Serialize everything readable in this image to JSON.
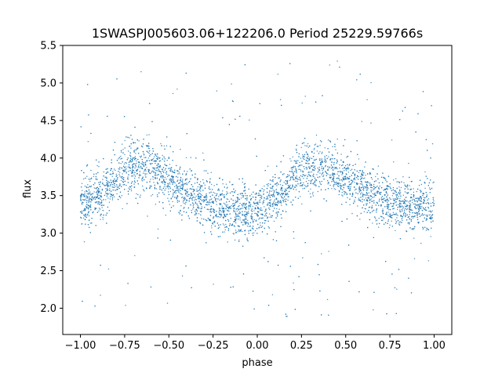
{
  "chart_data": {
    "type": "scatter",
    "title": "1SWASPJ005603.06+122206.0 Period 25229.59766s",
    "xlabel": "phase",
    "ylabel": "flux",
    "xlim": [
      -1.1,
      1.1
    ],
    "ylim": [
      1.65,
      5.5
    ],
    "xticks": [
      -1.0,
      -0.75,
      -0.5,
      -0.25,
      0.0,
      0.25,
      0.5,
      0.75,
      1.0
    ],
    "xtick_labels": [
      "−1.00",
      "−0.75",
      "−0.50",
      "−0.25",
      "0.00",
      "0.25",
      "0.50",
      "0.75",
      "1.00"
    ],
    "yticks": [
      2.0,
      2.5,
      3.0,
      3.5,
      4.0,
      4.5,
      5.0,
      5.5
    ],
    "ytick_labels": [
      "2.0",
      "2.5",
      "3.0",
      "3.5",
      "4.0",
      "4.5",
      "5.0",
      "5.5"
    ],
    "grid": false,
    "point_color": "#1f77b4",
    "phase_range": [
      -1.0,
      1.0
    ],
    "series": [
      {
        "x": [
          -1.0,
          -0.875,
          -0.75,
          -0.625,
          -0.5,
          -0.375,
          -0.25,
          -0.125,
          0.0,
          0.125,
          0.25,
          0.375,
          0.5,
          0.625,
          0.75,
          0.875,
          1.0
        ],
        "y": [
          3.35,
          3.55,
          3.85,
          3.9,
          3.7,
          3.5,
          3.35,
          3.3,
          3.3,
          3.5,
          3.85,
          3.9,
          3.7,
          3.55,
          3.4,
          3.35,
          3.35
        ]
      }
    ]
  }
}
